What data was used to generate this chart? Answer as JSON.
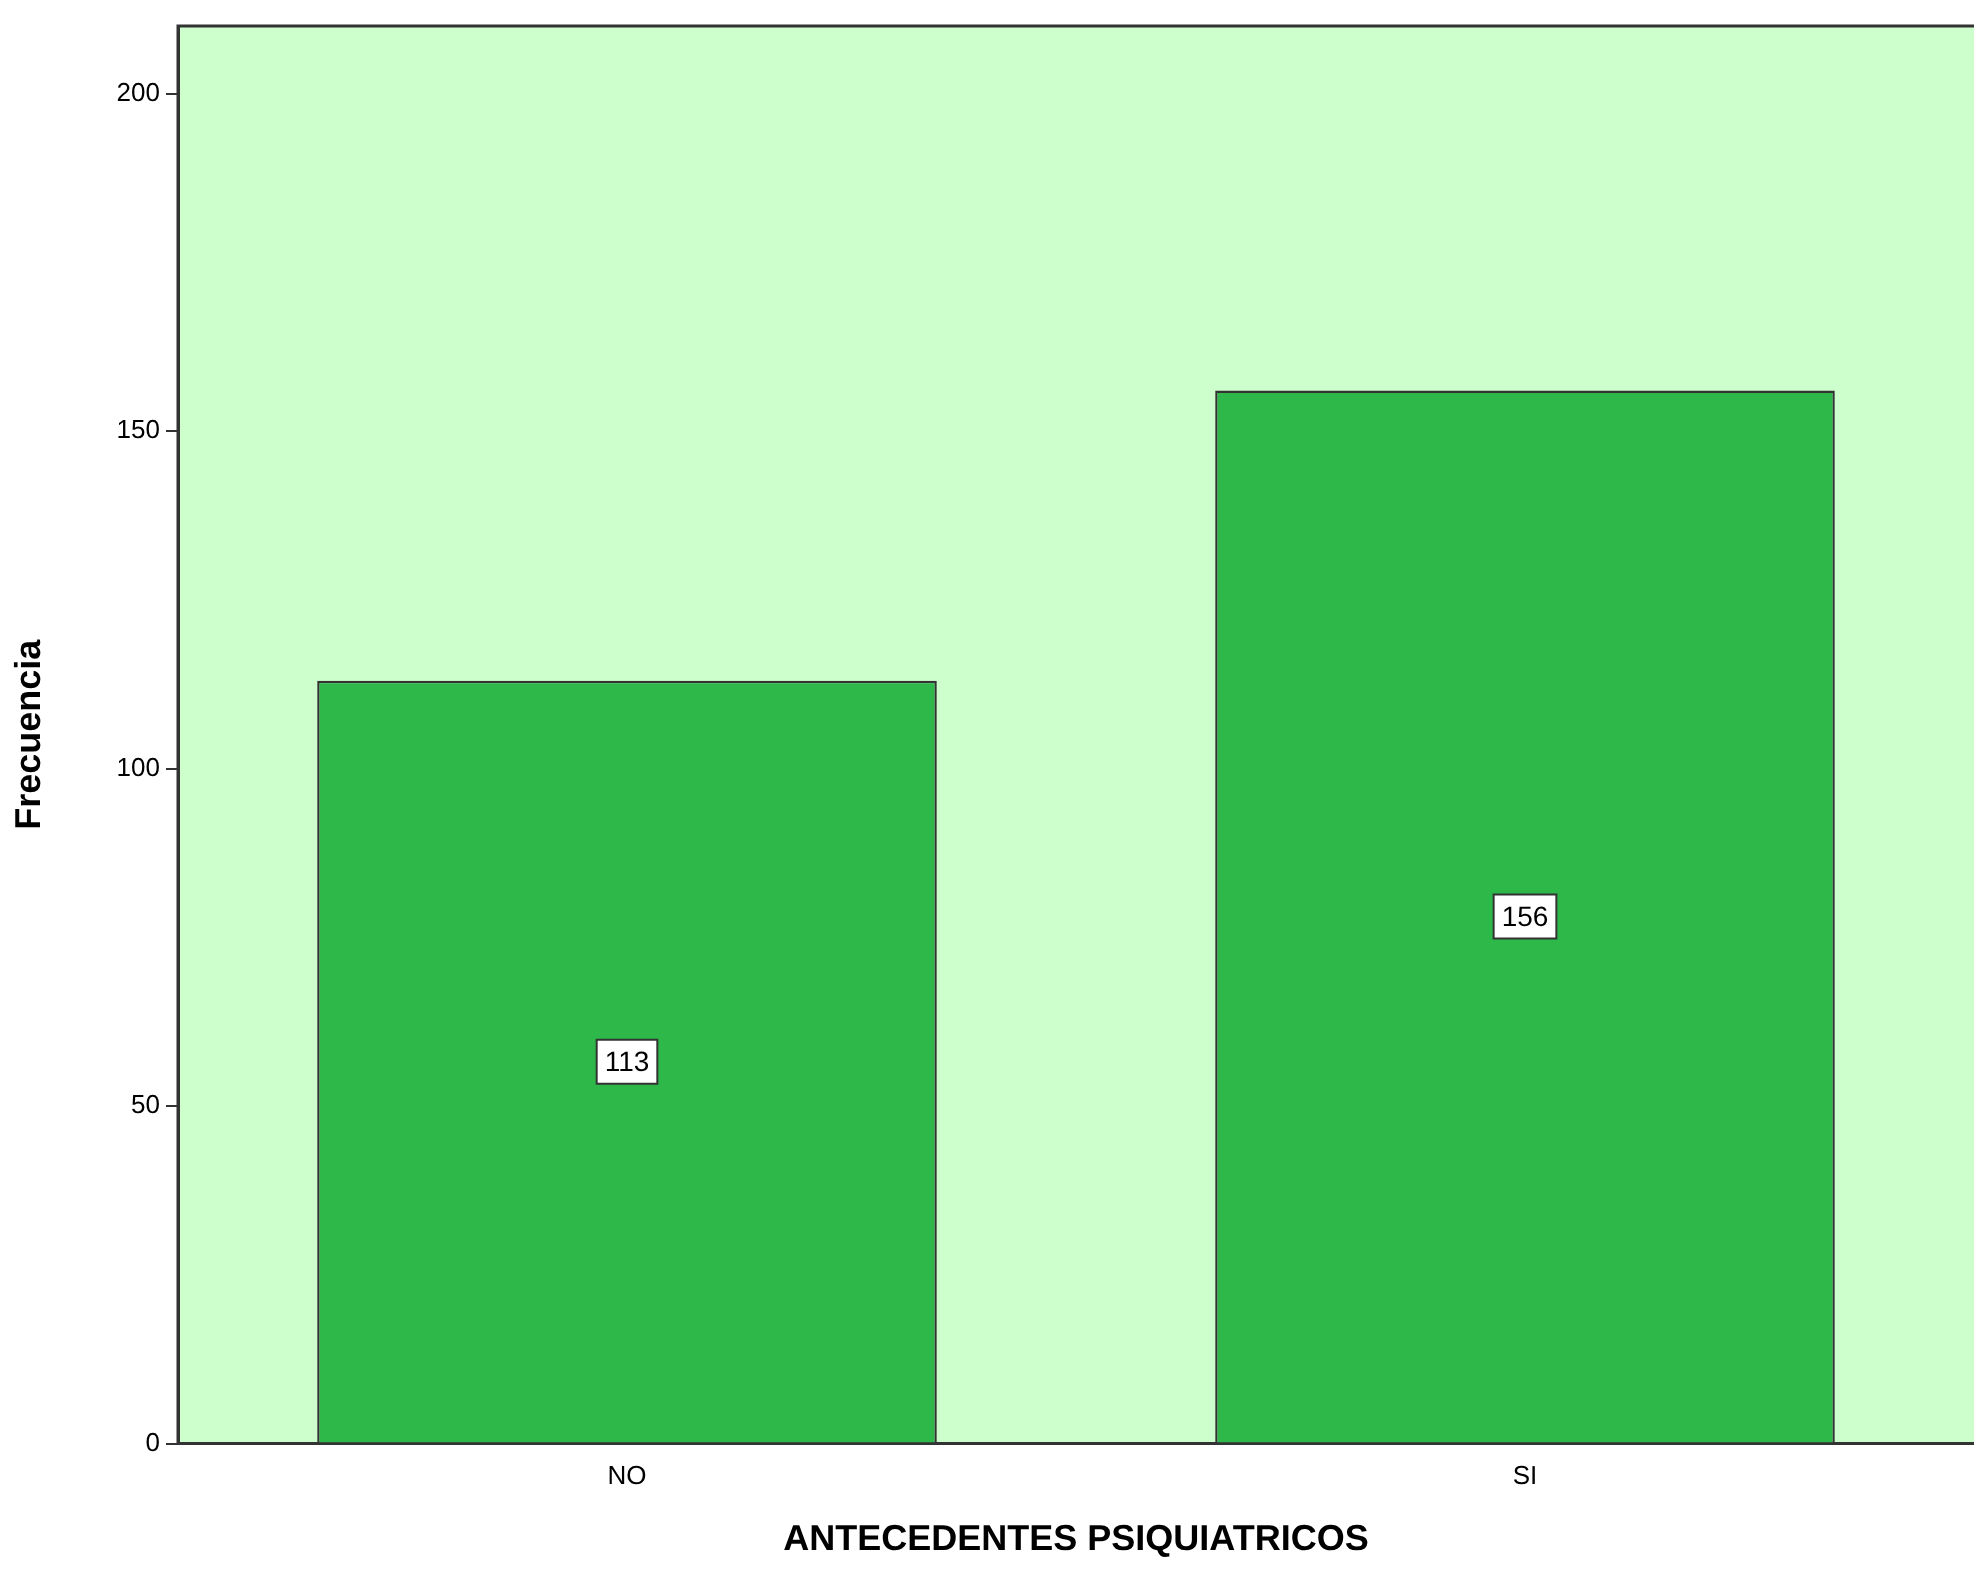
{
  "chart_data": {
    "type": "bar",
    "xlabel": "ANTECEDENTES PSIQUIATRICOS",
    "ylabel": "Frecuencia",
    "categories": [
      "NO",
      "SI"
    ],
    "values": [
      113,
      156
    ],
    "color": "#2eb84a",
    "ylim": [
      0,
      210
    ],
    "yticks": [
      0,
      50,
      100,
      150,
      200
    ],
    "grid": false,
    "legend": false,
    "data_labels": true
  }
}
